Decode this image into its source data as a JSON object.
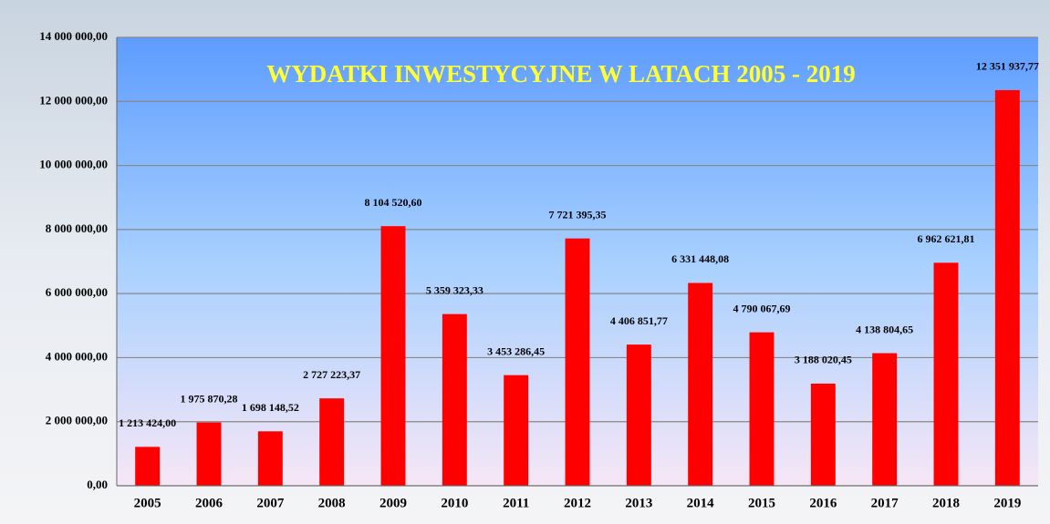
{
  "chart_data": {
    "type": "bar",
    "title": "WYDATKI INWESTYCYJNE W LATACH 2005 - 2019",
    "categories": [
      "2005",
      "2006",
      "2007",
      "2008",
      "2009",
      "2010",
      "2011",
      "2012",
      "2013",
      "2014",
      "2015",
      "2016",
      "2017",
      "2018",
      "2019"
    ],
    "values": [
      1213424.0,
      1975870.28,
      1698148.52,
      2727223.37,
      8104520.6,
      5359323.33,
      3453286.45,
      7721395.35,
      4406851.77,
      6331448.08,
      4790067.69,
      3188020.45,
      4138804.65,
      6962621.81,
      12351937.77
    ],
    "value_labels": [
      "1 213 424,00",
      "1 975 870,28",
      "1 698 148,52",
      "2 727 223,37",
      "8 104 520,60",
      "5 359 323,33",
      "3 453 286,45",
      "7 721 395,35",
      "4 406 851,77",
      "6 331 448,08",
      "4 790 067,69",
      "3 188 020,45",
      "4 138 804,65",
      "6 962 621,81",
      "12 351 937,77"
    ],
    "color": "#ff0000",
    "ylim": [
      0,
      14000000
    ],
    "yticks": [
      {
        "value": 0,
        "label": "0,00"
      },
      {
        "value": 2000000,
        "label": "2 000 000,00"
      },
      {
        "value": 4000000,
        "label": "4 000 000,00"
      },
      {
        "value": 6000000,
        "label": "6 000 000,00"
      },
      {
        "value": 8000000,
        "label": "8 000 000,00"
      },
      {
        "value": 10000000,
        "label": "10 000 000,00"
      },
      {
        "value": 12000000,
        "label": "12 000 000,00"
      },
      {
        "value": 14000000,
        "label": "14 000 000,00"
      }
    ],
    "grid": true
  }
}
